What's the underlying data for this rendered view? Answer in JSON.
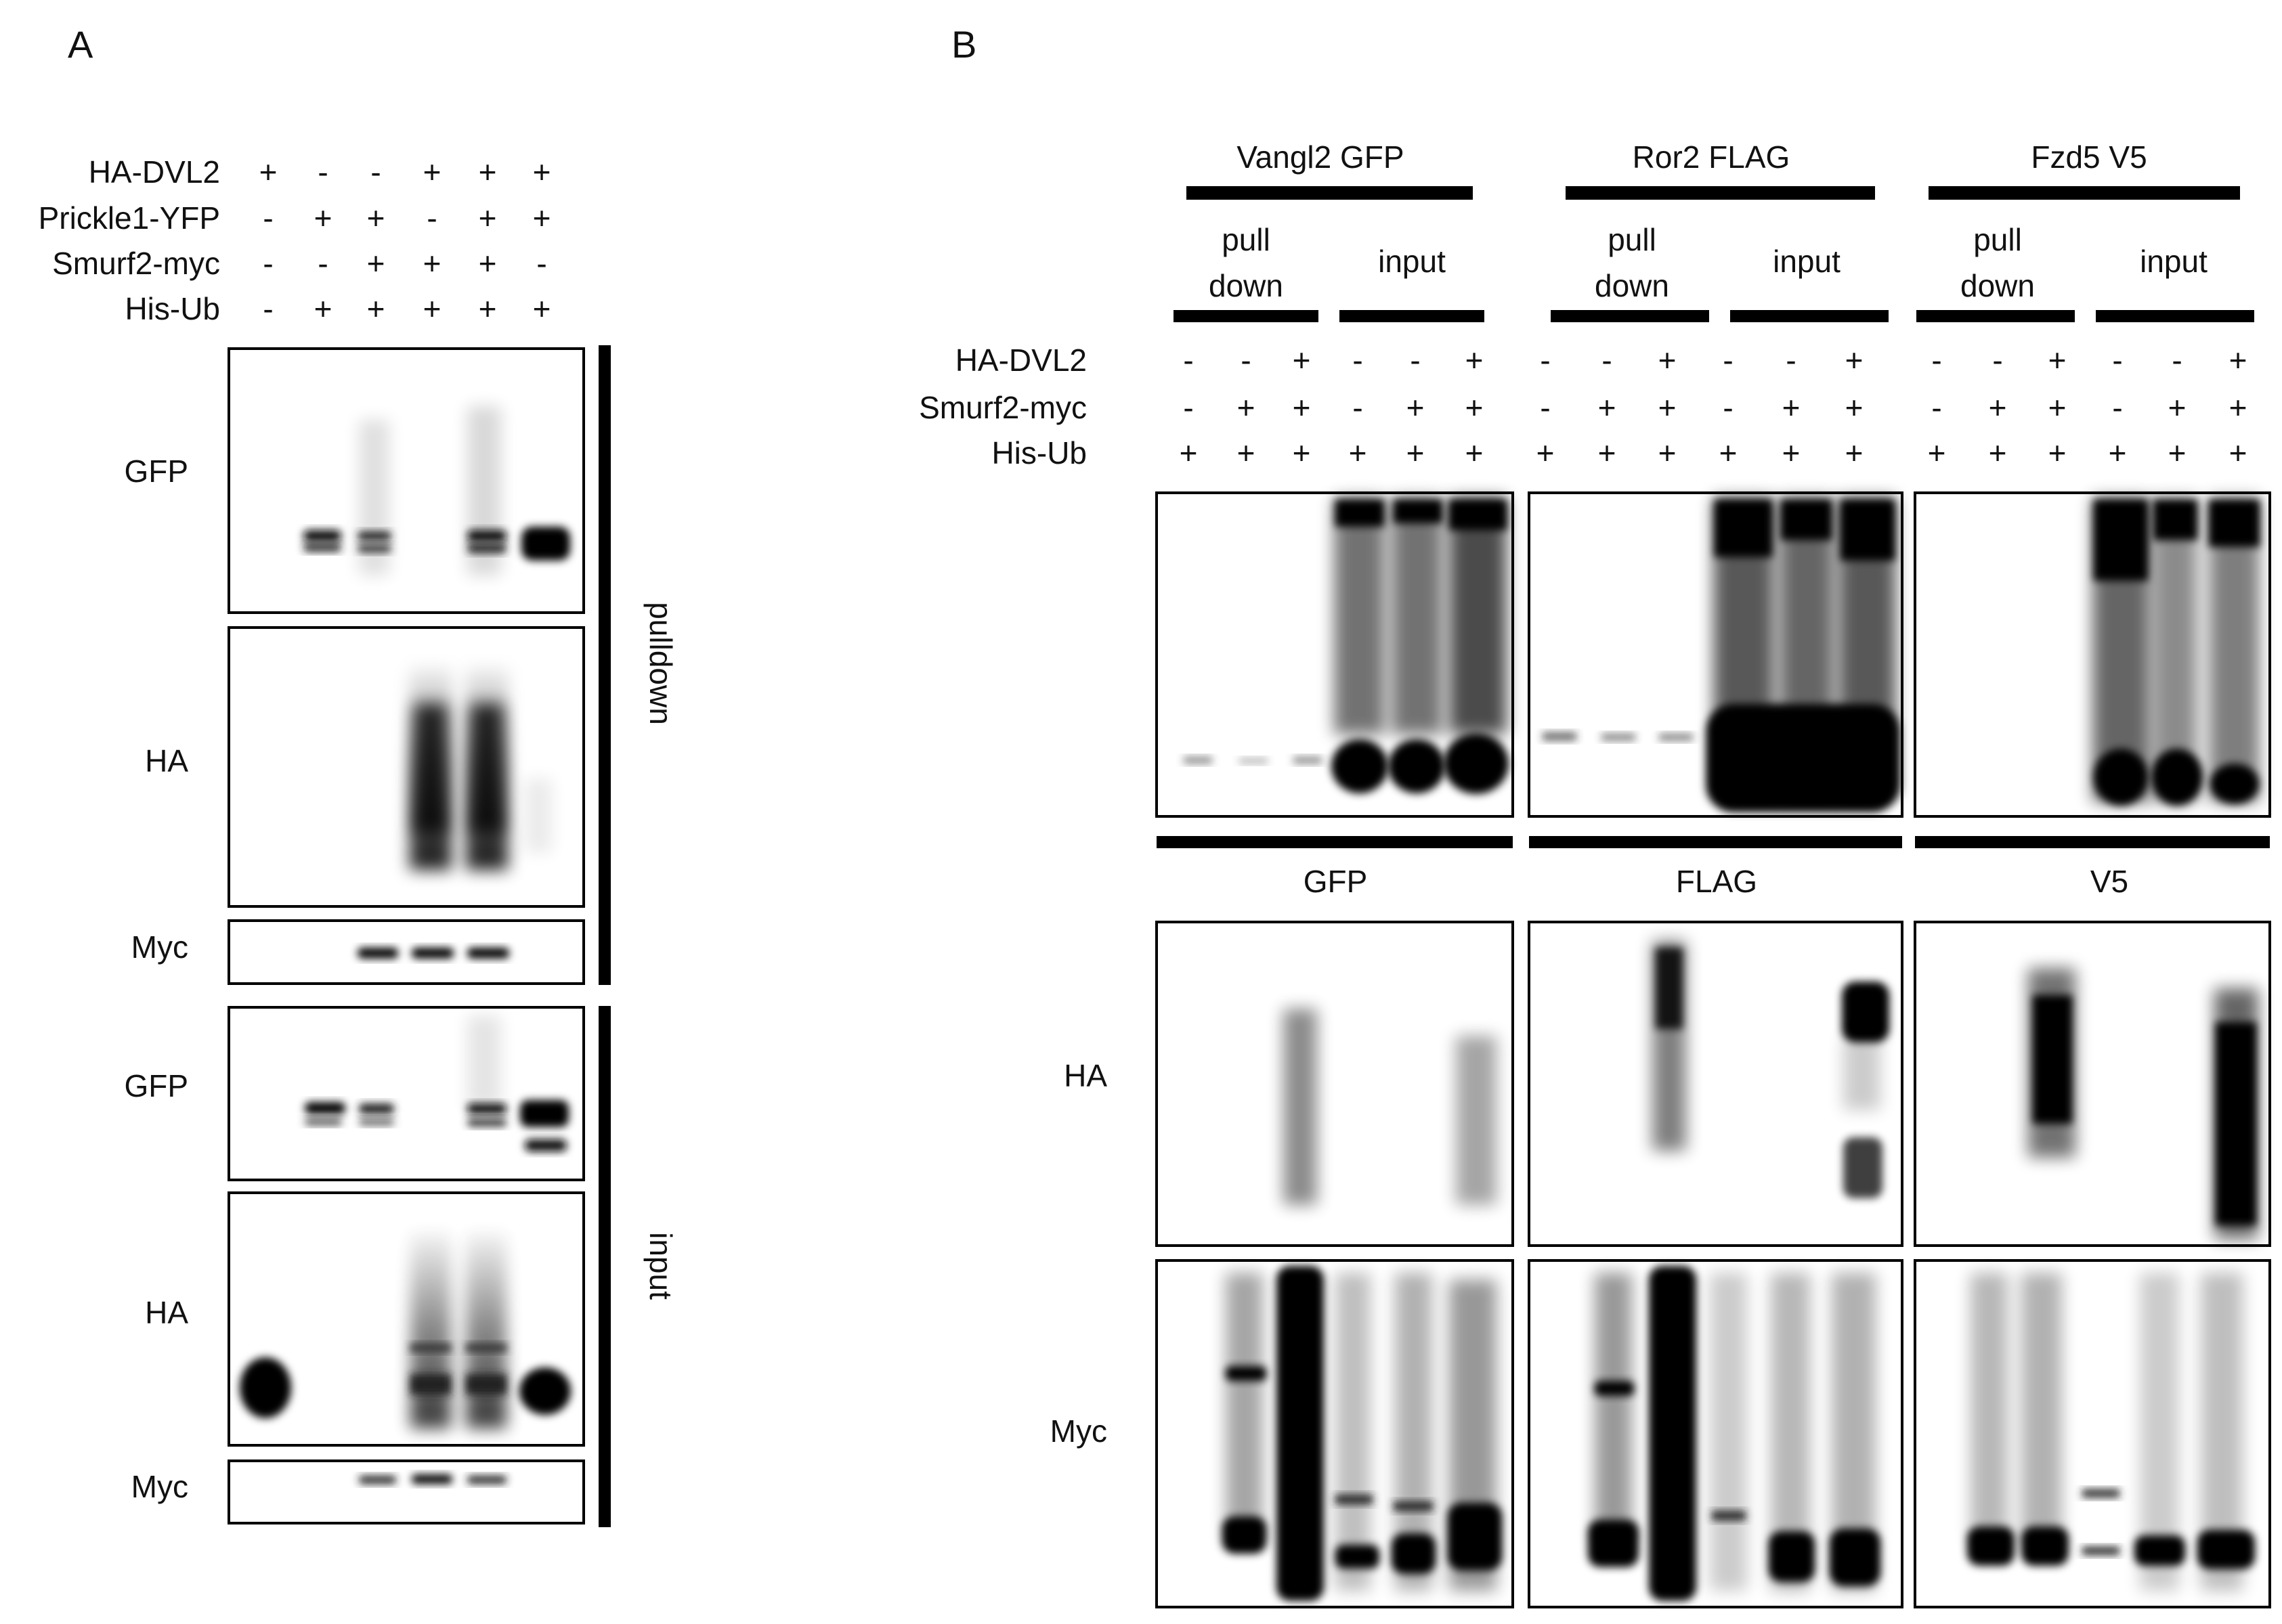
{
  "panel_a": {
    "letter": "A",
    "conditions": [
      {
        "label": "HA-DVL2",
        "signs": [
          "+",
          "-",
          "-",
          "+",
          "+",
          "+"
        ]
      },
      {
        "label": "Prickle1-YFP",
        "signs": [
          "-",
          "+",
          "+",
          "-",
          "+",
          "+"
        ]
      },
      {
        "label": "Smurf2-myc",
        "signs": [
          "-",
          "-",
          "+",
          "+",
          "+",
          "-"
        ]
      },
      {
        "label": "His-Ub",
        "signs": [
          "-",
          "+",
          "+",
          "+",
          "+",
          "+"
        ]
      }
    ],
    "blots": [
      {
        "label": "GFP"
      },
      {
        "label": "HA"
      },
      {
        "label": "Myc"
      },
      {
        "label": "GFP"
      },
      {
        "label": "HA"
      },
      {
        "label": "Myc"
      }
    ],
    "side_labels": [
      "pulldown",
      "input"
    ]
  },
  "panel_b": {
    "letter": "B",
    "groups": [
      {
        "name": "Vangl2 GFP",
        "sub": [
          "pull",
          "down",
          "input"
        ],
        "tag": "GFP"
      },
      {
        "name": "Ror2 FLAG",
        "sub": [
          "pull",
          "down",
          "input"
        ],
        "tag": "FLAG"
      },
      {
        "name": "Fzd5 V5",
        "sub": [
          "pull",
          "down",
          "input"
        ],
        "tag": "V5"
      }
    ],
    "conditions": [
      {
        "label": "HA-DVL2",
        "signs": [
          "-",
          "-",
          "+",
          "-",
          "-",
          "+"
        ]
      },
      {
        "label": "Smurf2-myc",
        "signs": [
          "-",
          "+",
          "+",
          "-",
          "+",
          "+"
        ]
      },
      {
        "label": "His-Ub",
        "signs": [
          "+",
          "+",
          "+",
          "+",
          "+",
          "+"
        ]
      }
    ],
    "row_labels": [
      "HA",
      "Myc"
    ]
  }
}
